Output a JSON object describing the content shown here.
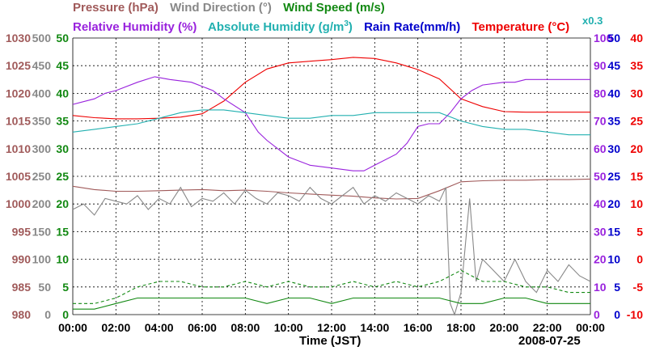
{
  "chart_data": {
    "type": "line",
    "title_row1": [
      {
        "name": "Pressure (hPa)",
        "color": "#a05a5a"
      },
      {
        "name": "Wind Direction (°)",
        "color": "#888888"
      },
      {
        "name": "Wind Speed (m/s)",
        "color": "#118811"
      }
    ],
    "title_row2": [
      {
        "name": "Relative Humidity (%)",
        "color": "#9922dd"
      },
      {
        "name": "Absolute Humidity (g/m",
        "sup": "3",
        "after": ")",
        "color": "#22b0b0"
      },
      {
        "name": "Rain Rate(mm/h)",
        "color": "#0000cc"
      },
      {
        "name": "Temperature (°C)",
        "color": "#ee0000"
      }
    ],
    "multiplier_note": "x0.3",
    "xlabel": "Time (JST)",
    "date": "2008-07-25",
    "x_ticks": [
      "00:00",
      "02:00",
      "04:00",
      "06:00",
      "08:00",
      "10:00",
      "12:00",
      "14:00",
      "16:00",
      "18:00",
      "20:00",
      "22:00",
      "00:00"
    ],
    "axes": {
      "pressure": {
        "color": "#a05a5a",
        "ticks": [
          "1030",
          "1025",
          "1020",
          "1015",
          "1010",
          "1005",
          "1000",
          "995",
          "990",
          "985",
          "980"
        ]
      },
      "wind_direction": {
        "color": "#888888",
        "ticks": [
          "500",
          "450",
          "400",
          "350",
          "300",
          "250",
          "200",
          "150",
          "100",
          "50",
          "0"
        ]
      },
      "wind_speed": {
        "color": "#118811",
        "ticks": [
          "50",
          "45",
          "40",
          "35",
          "30",
          "25",
          "20",
          "15",
          "10",
          "5",
          "0"
        ]
      },
      "humidity": {
        "color": "#9922dd",
        "ticks": [
          "100",
          "90",
          "80",
          "70",
          "60",
          "50",
          "40",
          "30",
          "20",
          "10",
          "0"
        ]
      },
      "rain_rate": {
        "color": "#0000cc",
        "ticks": [
          "50",
          "45",
          "40",
          "35",
          "30",
          "25",
          "20",
          "15",
          "10",
          "5",
          "0"
        ]
      },
      "temperature": {
        "color": "#ee0000",
        "ticks": [
          "40",
          "35",
          "30",
          "25",
          "20",
          "15",
          "10",
          "5",
          "0",
          "-5",
          "-10"
        ]
      }
    },
    "series": [
      {
        "name": "Pressure",
        "color": "#a05a5a",
        "ylim": [
          980,
          1030
        ],
        "x": [
          0,
          1,
          2,
          3,
          4,
          5,
          6,
          7,
          8,
          9,
          10,
          11,
          12,
          13,
          14,
          15,
          16,
          17,
          18,
          19,
          20,
          21,
          22,
          23,
          24
        ],
        "y": [
          1003.2,
          1002.6,
          1002.3,
          1002.3,
          1002.4,
          1002.5,
          1002.6,
          1002.4,
          1002.5,
          1002.3,
          1002.0,
          1001.8,
          1001.6,
          1001.4,
          1001.1,
          1000.9,
          1001.0,
          1002.4,
          1004.0,
          1004.2,
          1004.3,
          1004.3,
          1004.4,
          1004.4,
          1004.5
        ]
      },
      {
        "name": "Temperature",
        "color": "#ee0000",
        "ylim": [
          -10,
          40
        ],
        "x": [
          0,
          1,
          2,
          3,
          4,
          5,
          6,
          7,
          8,
          9,
          10,
          11,
          12,
          13,
          14,
          15,
          16,
          17,
          18,
          19,
          20,
          21,
          22,
          23,
          24
        ],
        "y": [
          26.0,
          25.6,
          25.4,
          25.4,
          25.5,
          25.7,
          26.3,
          28.6,
          32.0,
          34.4,
          35.5,
          35.8,
          36.1,
          36.5,
          36.3,
          35.5,
          34.3,
          32.6,
          29.0,
          27.6,
          26.7,
          26.6,
          26.6,
          26.6,
          26.6
        ]
      },
      {
        "name": "Relative Humidity",
        "color": "#9922dd",
        "ylim": [
          0,
          100
        ],
        "x": [
          0,
          1,
          1.5,
          2,
          3,
          3.8,
          4.5,
          5.5,
          6.5,
          7,
          8,
          8.6,
          9,
          10,
          11,
          12,
          13,
          13.5,
          14,
          15,
          15.5,
          16,
          16.5,
          17,
          17.5,
          18,
          18.5,
          19,
          20,
          20.5,
          21,
          22,
          24
        ],
        "y": [
          76,
          78,
          80,
          81,
          84,
          86,
          85,
          84,
          81,
          78,
          73,
          66,
          63,
          57,
          54,
          53,
          52,
          52,
          54,
          58,
          62,
          68,
          69,
          69,
          73,
          78,
          81,
          83,
          84,
          84,
          85,
          85,
          85
        ]
      },
      {
        "name": "Absolute Humidity",
        "color": "#22b0b0",
        "ylim": [
          0,
          100
        ],
        "x": [
          0,
          1,
          2,
          3,
          4,
          5,
          6,
          7,
          8,
          9,
          10,
          11,
          12,
          13,
          14,
          15,
          16,
          17,
          18,
          19,
          20,
          21,
          22,
          23,
          24
        ],
        "y": [
          66,
          67,
          68,
          69,
          71,
          73,
          74,
          74,
          73,
          72,
          71,
          71,
          72,
          72,
          73,
          73,
          73,
          73,
          70,
          68,
          67,
          67,
          66,
          65,
          65
        ]
      },
      {
        "name": "Wind Direction",
        "color": "#888888",
        "ylim": [
          0,
          500
        ],
        "x": [
          0,
          0.5,
          1,
          1.5,
          2,
          2.5,
          3,
          3.5,
          4,
          4.5,
          5,
          5.5,
          6,
          6.5,
          7,
          7.5,
          8,
          8.5,
          9,
          9.5,
          10,
          10.5,
          11,
          11.5,
          12,
          12.5,
          13,
          13.5,
          14,
          14.5,
          15,
          15.5,
          16,
          16.5,
          17,
          17.3,
          17.5,
          17.7,
          18,
          18.4,
          18.7,
          19,
          19.5,
          20,
          20.5,
          21,
          21.5,
          22,
          22.5,
          23,
          23.5,
          24
        ],
        "y": [
          190,
          200,
          180,
          210,
          205,
          200,
          215,
          190,
          210,
          200,
          230,
          195,
          210,
          205,
          220,
          200,
          225,
          210,
          200,
          220,
          215,
          205,
          230,
          210,
          200,
          215,
          230,
          200,
          215,
          205,
          220,
          210,
          200,
          215,
          205,
          230,
          20,
          0,
          40,
          210,
          60,
          100,
          80,
          60,
          100,
          60,
          40,
          80,
          60,
          90,
          70,
          60
        ]
      },
      {
        "name": "Wind Speed (solid)",
        "color": "#118811",
        "ylim": [
          0,
          50
        ],
        "x": [
          0,
          1,
          2,
          3,
          4,
          5,
          6,
          7,
          8,
          9,
          10,
          11,
          12,
          13,
          14,
          15,
          16,
          17,
          18,
          19,
          20,
          21,
          22,
          23,
          24
        ],
        "y": [
          1,
          1,
          2,
          3,
          3,
          3,
          3,
          3,
          3,
          2,
          3,
          3,
          2,
          3,
          3,
          3,
          3,
          3,
          2,
          2,
          3,
          3,
          2,
          2,
          2
        ]
      },
      {
        "name": "Wind Speed (dashed)",
        "color": "#118811",
        "dashed": true,
        "ylim": [
          0,
          50
        ],
        "x": [
          0,
          1,
          2,
          3,
          4,
          5,
          6,
          7,
          8,
          9,
          10,
          11,
          12,
          13,
          14,
          15,
          16,
          17,
          18,
          19,
          20,
          21,
          22,
          23,
          24
        ],
        "y": [
          2,
          2,
          3,
          5,
          6,
          6,
          5,
          5,
          6,
          5,
          6,
          5,
          5,
          6,
          5,
          6,
          5,
          6,
          8,
          6,
          6,
          5,
          5,
          4,
          4
        ]
      }
    ]
  }
}
